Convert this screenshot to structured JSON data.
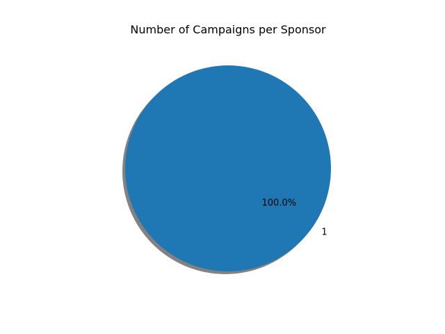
{
  "chart_data": {
    "type": "pie",
    "title": "Number of Campaigns per Sponsor",
    "labels": [
      "1"
    ],
    "values": [
      1
    ],
    "percent_labels": [
      "100.0%"
    ],
    "colors": [
      "#1f77b4"
    ],
    "shadow": true,
    "legend": "none"
  }
}
